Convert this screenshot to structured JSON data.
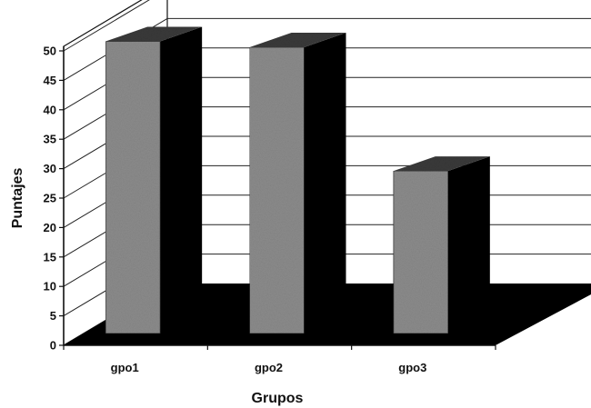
{
  "chart_data": {
    "type": "bar",
    "style": "3d-column",
    "title": "",
    "xlabel": "Grupos",
    "ylabel": "Puntajes",
    "categories": [
      "gpo1",
      "gpo2",
      "gpo3"
    ],
    "values": [
      51,
      50,
      29
    ],
    "ylim": [
      0,
      50
    ],
    "yticks": [
      "0",
      "5",
      "10",
      "15",
      "20",
      "25",
      "30",
      "35",
      "40",
      "45",
      "50"
    ],
    "grid": true,
    "legend": "none",
    "colors": {
      "bar_front": "#8c8c8c",
      "bar_side": "#000000",
      "bar_top": "#3a3a3a",
      "floor": "#000000",
      "gridline": "#222222"
    }
  }
}
